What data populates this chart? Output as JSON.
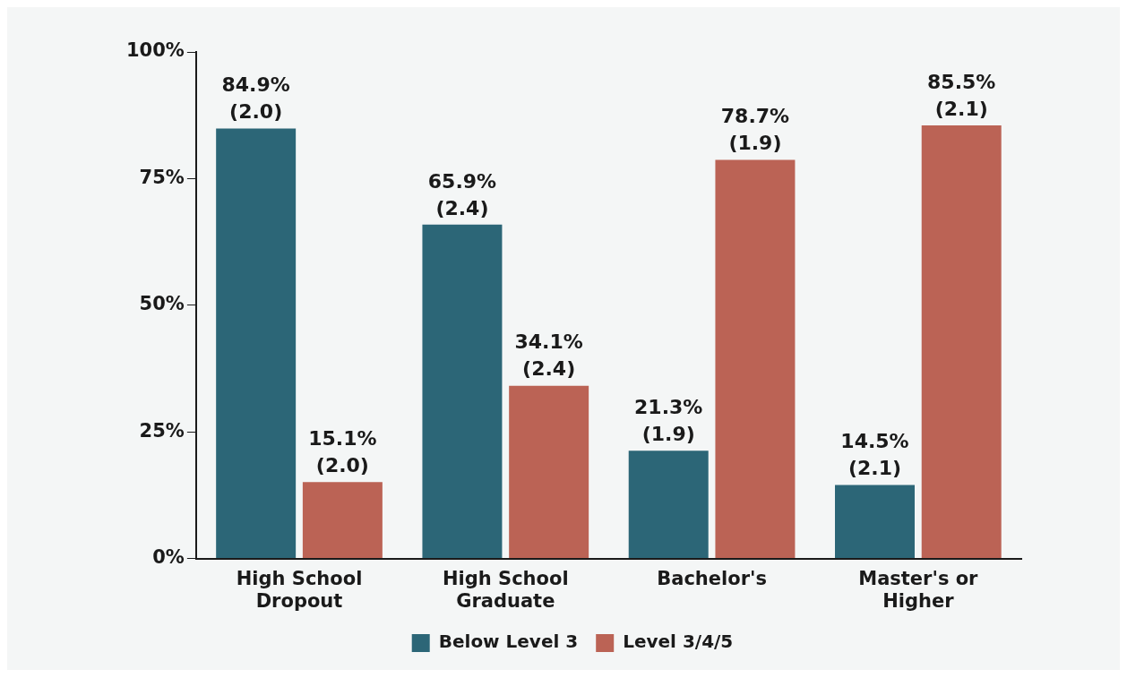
{
  "chart_data": {
    "type": "bar",
    "categories": [
      "High School Dropout",
      "High School Graduate",
      "Bachelor's",
      "Master's or Higher"
    ],
    "series": [
      {
        "name": "Below Level 3",
        "color": "#2c6677",
        "values": [
          84.9,
          65.9,
          21.3,
          14.5
        ],
        "value_labels": [
          "84.9% (2.0)",
          "65.9% (2.4)",
          "21.3% (1.9)",
          "14.5% (2.1)"
        ]
      },
      {
        "name": "Level 3/4/5",
        "color": "#bb6355",
        "values": [
          15.1,
          34.1,
          78.7,
          85.5
        ],
        "value_labels": [
          "15.1% (2.0)",
          "34.1% (2.4)",
          "78.7% (1.9)",
          "85.5% (2.1)"
        ]
      }
    ],
    "ylim": [
      0,
      100
    ],
    "yticks": [
      {
        "value": 0,
        "label": "0%"
      },
      {
        "value": 25,
        "label": "25%"
      },
      {
        "value": 50,
        "label": "50%"
      },
      {
        "value": 75,
        "label": "75%"
      },
      {
        "value": 100,
        "label": "100%"
      }
    ],
    "grid": false,
    "legend": "bottom"
  }
}
